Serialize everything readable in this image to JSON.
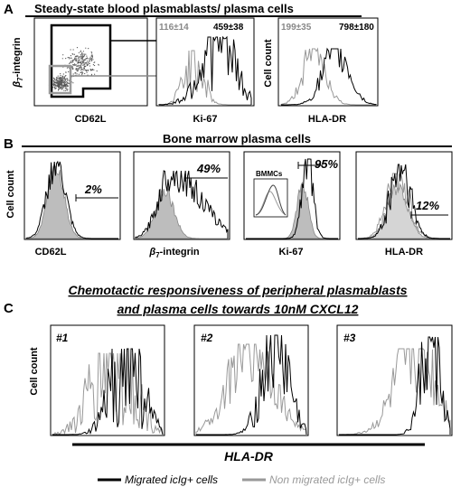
{
  "panel_a": {
    "letter": "A",
    "title": "Steady-state blood plasmablasts/ plasma cells",
    "plot1": {
      "ylabel_greek": "β",
      "ylabel_sub": "7",
      "ylabel_rest": "-integrin",
      "xlabel": "CD62L"
    },
    "plot2": {
      "xlabel": "Ki-67",
      "stat_grey": "116±14",
      "stat_black": "459±38"
    },
    "plot3": {
      "ylabel": "Cell count",
      "xlabel": "HLA-DR",
      "stat_grey": "199±35",
      "stat_black": "798±180"
    }
  },
  "panel_b": {
    "letter": "B",
    "title": "Bone marrow plasma cells",
    "ylabel": "Cell count",
    "plots": [
      {
        "xlabel": "CD62L",
        "percent": "2%"
      },
      {
        "xlabel_greek": "β",
        "xlabel_sub": "7",
        "xlabel_rest": "-integrin",
        "percent": "49%"
      },
      {
        "xlabel": "Ki-67",
        "percent": "95%",
        "inset_label": "BMMCs"
      },
      {
        "xlabel": "HLA-DR",
        "percent": "12%"
      }
    ]
  },
  "panel_c": {
    "letter": "C",
    "title_line1": "Chemotactic responsiveness of peripheral plasmablasts",
    "title_line2": "and plasma cells towards 10nM CXCL12",
    "ylabel": "Cell count",
    "xlabel": "HLA-DR",
    "plots": [
      {
        "label": "#1"
      },
      {
        "label": "#2"
      },
      {
        "label": "#3"
      }
    ],
    "legend": [
      {
        "label": "Migrated icIg+ cells",
        "color": "#000000"
      },
      {
        "label": "Non migrated icIg+ cells",
        "color": "#999999"
      }
    ]
  }
}
